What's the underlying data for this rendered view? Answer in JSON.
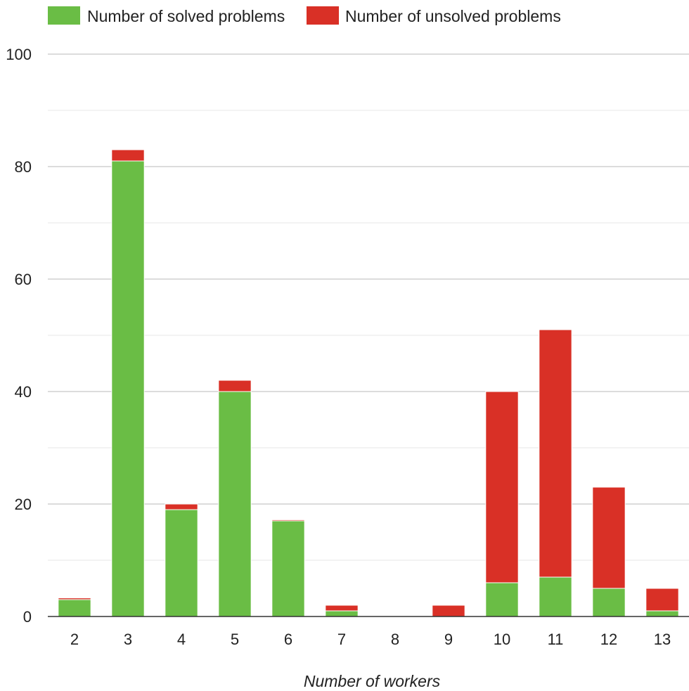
{
  "chart_data": {
    "type": "bar",
    "stacked": true,
    "title": "",
    "xlabel": "Number of workers",
    "ylabel": "",
    "categories": [
      "2",
      "3",
      "4",
      "5",
      "6",
      "7",
      "8",
      "9",
      "10",
      "11",
      "12",
      "13"
    ],
    "series": [
      {
        "name": "Number of solved problems",
        "color": "#6abd45",
        "values": [
          3,
          81,
          19,
          40,
          17,
          1,
          0,
          0,
          6,
          7,
          5,
          1
        ]
      },
      {
        "name": "Number of unsolved problems",
        "color": "#d93026",
        "values": [
          0.3,
          2,
          1,
          2,
          0.2,
          1,
          0,
          2,
          34,
          44,
          18,
          4
        ]
      }
    ],
    "ylim": [
      0,
      100
    ],
    "yticks": [
      "0",
      "20",
      "40",
      "60",
      "80",
      "100"
    ],
    "grid": true,
    "legend_position": "top-left"
  }
}
